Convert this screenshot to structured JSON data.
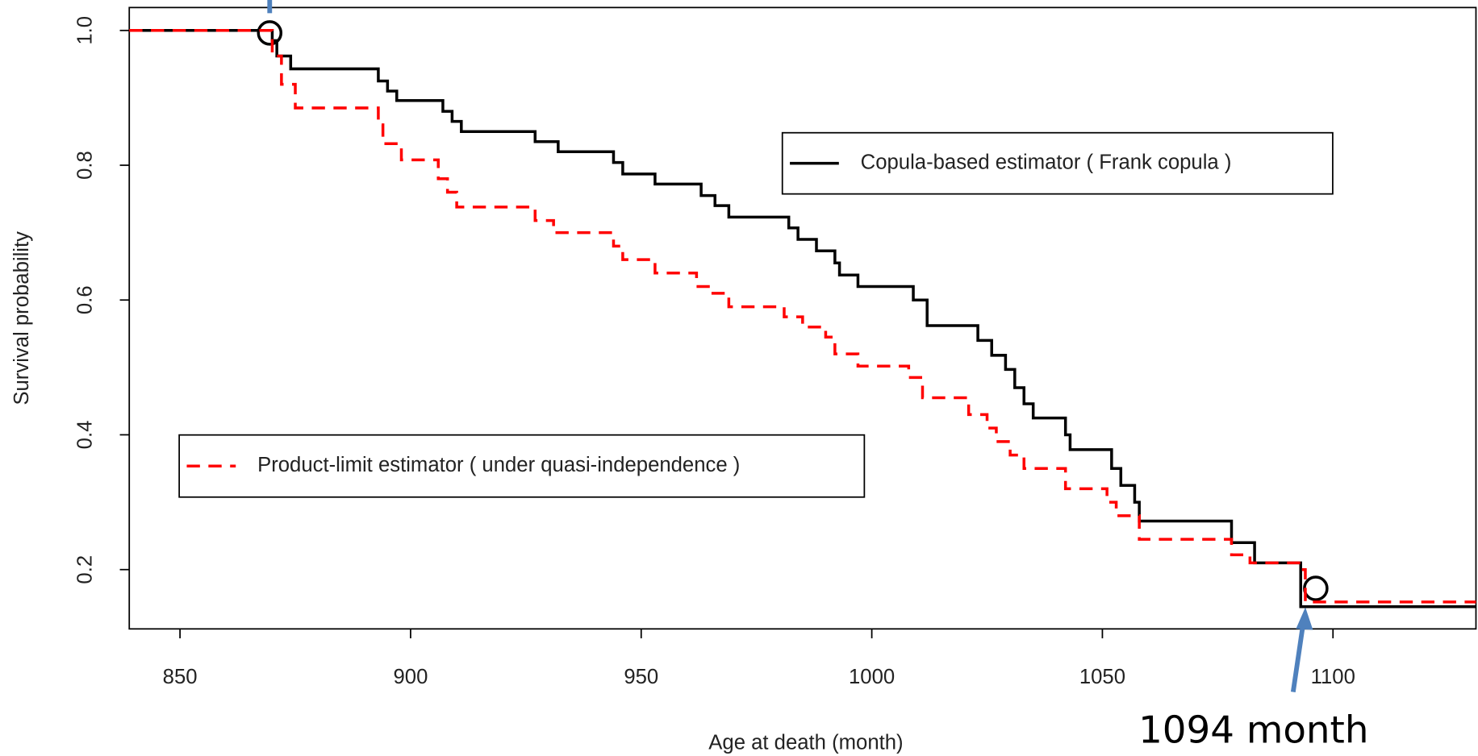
{
  "chart_data": {
    "type": "step",
    "x_label": "Age at death (month)",
    "y_label": "Survival probability",
    "annotation": "1094 month",
    "xlim": [
      839,
      1131
    ],
    "ylim": [
      0.112,
      1.034
    ],
    "xticks": [
      850,
      900,
      950,
      1000,
      1050,
      1100
    ],
    "yticks": [
      0.2,
      0.4,
      0.6,
      0.8,
      {
        "value": 1,
        "label": "1.0"
      }
    ],
    "series": [
      {
        "name": "Copula-based estimator ( Frank copula )",
        "color": "#000000",
        "dash": "solid",
        "x": [
          839,
          870,
          871,
          874,
          893,
          895,
          897,
          907,
          909,
          911,
          927,
          932,
          944,
          946,
          953,
          963,
          966,
          969,
          982,
          984,
          988,
          992,
          993,
          997,
          1009,
          1012,
          1023,
          1026,
          1029,
          1031,
          1033,
          1035,
          1042,
          1043,
          1052,
          1054,
          1057,
          1058,
          1078,
          1083,
          1093,
          1131
        ],
        "values": [
          1.0,
          0.985,
          0.962,
          0.943,
          0.925,
          0.91,
          0.896,
          0.88,
          0.865,
          0.85,
          0.835,
          0.82,
          0.804,
          0.787,
          0.772,
          0.755,
          0.74,
          0.723,
          0.707,
          0.69,
          0.673,
          0.655,
          0.637,
          0.62,
          0.6,
          0.562,
          0.54,
          0.518,
          0.497,
          0.47,
          0.446,
          0.425,
          0.4,
          0.378,
          0.35,
          0.325,
          0.3,
          0.272,
          0.24,
          0.21,
          0.145,
          0.145
        ]
      },
      {
        "name": "Product-limit estimator ( under quasi-independence )",
        "color": "#ff0000",
        "dash": "dashed",
        "x": [
          839,
          870,
          872,
          875,
          893,
          894,
          898,
          906,
          908,
          910,
          927,
          931,
          944,
          946,
          953,
          962,
          965,
          969,
          981,
          985,
          990,
          992,
          997,
          1008,
          1011,
          1021,
          1025,
          1027,
          1030,
          1033,
          1042,
          1051,
          1053,
          1058,
          1078,
          1082,
          1093,
          1094,
          1131
        ],
        "values": [
          1.0,
          0.962,
          0.92,
          0.885,
          0.86,
          0.832,
          0.808,
          0.78,
          0.76,
          0.738,
          0.718,
          0.7,
          0.68,
          0.66,
          0.64,
          0.62,
          0.61,
          0.59,
          0.575,
          0.56,
          0.545,
          0.52,
          0.502,
          0.485,
          0.455,
          0.43,
          0.41,
          0.39,
          0.37,
          0.35,
          0.32,
          0.3,
          0.28,
          0.245,
          0.222,
          0.21,
          0.2,
          0.152,
          0.152
        ]
      }
    ]
  }
}
